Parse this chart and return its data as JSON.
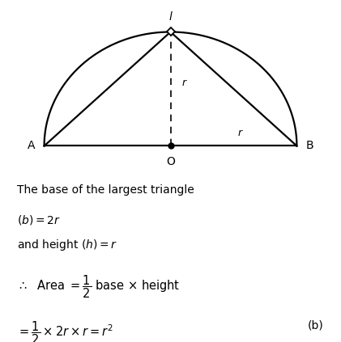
{
  "bg_color": "#ffffff",
  "fig_width": 4.21,
  "fig_height": 4.23,
  "label_A": "A",
  "label_B": "B",
  "label_O": "O",
  "label_l": "l",
  "label_r1": "r",
  "label_r2": "r",
  "line1": "The base of the largest triangle",
  "line2": "$(b) = 2r$",
  "line3": "and height $(h) = r$",
  "line4": "$\\therefore$  Area $= \\dfrac{1}{2}$ base $\\times$ height",
  "line5": "$= \\dfrac{1}{2} \\times 2r \\times r = r^2$",
  "label_b": "(b)",
  "text_color": "#000000",
  "diagram_color": "#000000"
}
